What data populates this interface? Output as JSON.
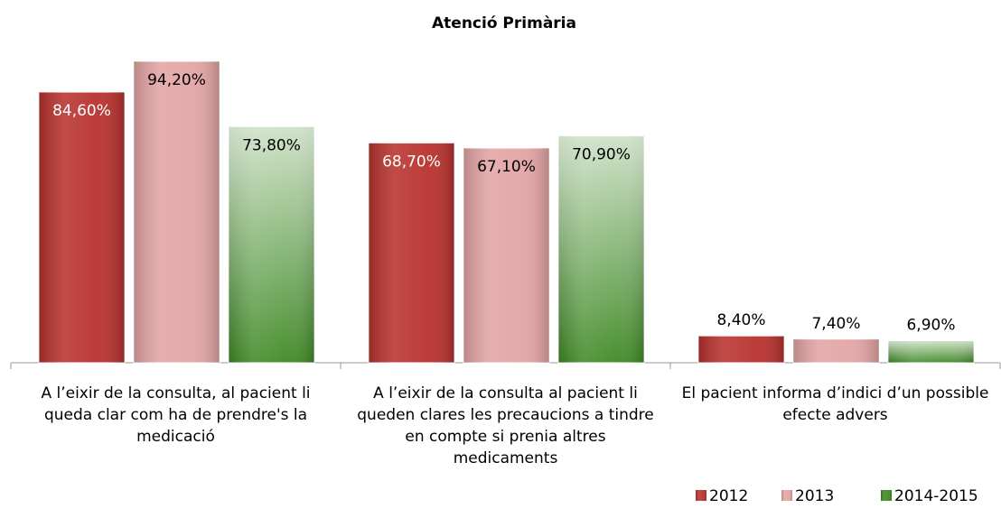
{
  "chart_data": {
    "type": "bar",
    "title": "Atenció Primària",
    "categories": [
      "A l’eixir de la consulta, al pacient li queda clar com ha de prendre's la medicació",
      "A l’eixir de la consulta al pacient li queden clares les precaucions a tindre en compte si prenia altres medicaments",
      "El pacient informa d’indici d’un possible efecte advers"
    ],
    "series": [
      {
        "name": "2012",
        "color": "#b8322e",
        "values": [
          84.6,
          68.7,
          8.4
        ],
        "value_labels": [
          "84,60%",
          "68,70%",
          "8,40%"
        ]
      },
      {
        "name": "2013",
        "color": "#e3a4a4",
        "values": [
          94.2,
          67.1,
          7.4
        ],
        "value_labels": [
          "94,20%",
          "67,10%",
          "7,40%"
        ]
      },
      {
        "name": "2014-2015",
        "color": "#3f8a25",
        "values": [
          73.8,
          70.9,
          6.9
        ],
        "value_labels": [
          "73,80%",
          "70,90%",
          "6,90%"
        ]
      }
    ],
    "legend": "bottom-right"
  }
}
